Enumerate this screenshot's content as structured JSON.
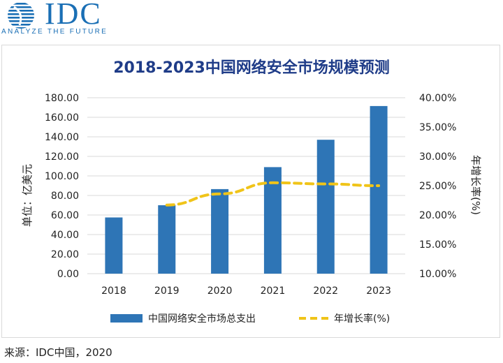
{
  "logo": {
    "brand": "IDC",
    "tagline": "ANALYZE THE FUTURE",
    "color": "#1a6fb5"
  },
  "source": "来源：IDC中国，2020",
  "chart_data": {
    "type": "bar",
    "title": "2018-2023中国网络安全市场规模预测",
    "categories": [
      "2018",
      "2019",
      "2020",
      "2021",
      "2022",
      "2023"
    ],
    "series": [
      {
        "name": "中国网络安全市场总支出",
        "type": "bar",
        "axis": "left",
        "color": "#2e75b6",
        "values": [
          57.5,
          70.0,
          86.5,
          109.0,
          137.0,
          171.5
        ]
      },
      {
        "name": "年增长率(%)",
        "type": "line",
        "style": "dashed",
        "axis": "right",
        "color": "#f0c419",
        "values": [
          null,
          21.7,
          23.6,
          25.5,
          25.3,
          25.0
        ]
      }
    ],
    "ylabel": "单位：亿美元",
    "ylim": [
      0,
      180
    ],
    "yticks": [
      "0.00",
      "20.00",
      "40.00",
      "60.00",
      "80.00",
      "100.00",
      "120.00",
      "140.00",
      "160.00",
      "180.00"
    ],
    "y2label": "年增长率(%)",
    "y2lim": [
      10,
      40
    ],
    "y2ticks": [
      "10.00%",
      "15.00%",
      "20.00%",
      "25.00%",
      "30.00%",
      "35.00%",
      "40.00%"
    ],
    "grid": true,
    "legend": "bottom"
  }
}
